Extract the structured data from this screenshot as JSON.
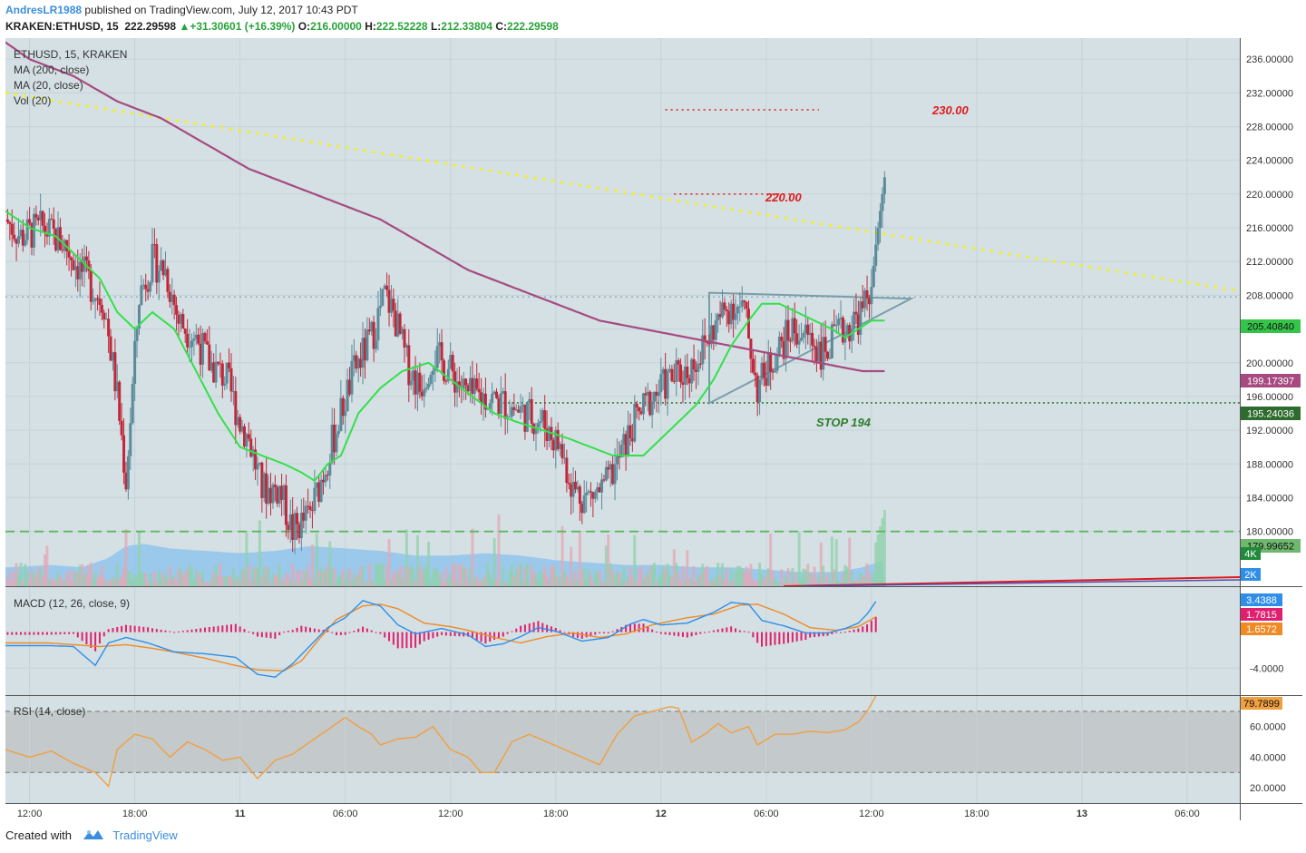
{
  "header": {
    "user": "AndresLR1988",
    "published": "published on TradingView.com, July 12, 2017 10:43 PDT",
    "symbol": "KRAKEN:ETHUSD, 15",
    "last": "222.29598",
    "change_arrow": "▲",
    "change": "+31.30601 (+16.39%)",
    "o_label": "O:",
    "o": "216.00000",
    "h_label": "H:",
    "h": "222.52228",
    "l_label": "L:",
    "l": "212.33804",
    "c_label": "C:",
    "c": "222.29598"
  },
  "legend": {
    "title": "ETHUSD, 15, KRAKEN",
    "ma200": "MA (200, close)",
    "ma20": "MA (20, close)",
    "vol": "Vol (20)",
    "macd": "MACD (12, 26, close, 9)",
    "rsi": "RSI (14, close)"
  },
  "annotations": {
    "target_high": "230.00",
    "target_mid": "220.00",
    "stop": "STOP 194"
  },
  "price_labels": {
    "ma20": "205.40840",
    "ma200": "199.17397",
    "stop": "195.24036",
    "support": "179.99652",
    "vol_4k": "4K",
    "vol_2k": "2K",
    "macd_line": "3.4388",
    "hist": "1.7815",
    "signal": "1.6572",
    "rsi": "79.7899"
  },
  "footer": {
    "created": "Created with",
    "brand": "TradingView"
  },
  "colors": {
    "up": "#5b8a98",
    "down": "#c0283a",
    "ma20": "#34e04a",
    "ma200": "#a64a80",
    "trend": "#f2ef27",
    "red_level": "#e01b1b",
    "stop": "#2e7d2e",
    "support": "#5cb85c",
    "macd": "#2f8fe8",
    "signal": "#f08a24",
    "hist": "#e0206e",
    "rsi": "#f0a040",
    "panel_bg": "#d4e0e4",
    "rsi_band": "#c4c9cb"
  },
  "chart_data": {
    "type": "candlestick",
    "title": "ETHUSD, 15, KRAKEN",
    "price_axis": {
      "ticks": [
        "236.00000",
        "232.00000",
        "228.00000",
        "224.00000",
        "220.00000",
        "216.00000",
        "212.00000",
        "208.00000",
        "204.00000",
        "200.00000",
        "196.00000",
        "192.00000",
        "188.00000",
        "184.00000",
        "180.00000"
      ],
      "range": [
        173.5,
        238.5
      ]
    },
    "macd_axis": {
      "ticks": [
        "-4.0000"
      ],
      "range": [
        -7,
        5
      ]
    },
    "rsi_axis": {
      "ticks": [
        "60.0000",
        "40.0000",
        "20.0000"
      ],
      "range": [
        10,
        80
      ],
      "band": [
        30,
        70
      ]
    },
    "time_axis": {
      "ticks": [
        {
          "label": "12:00",
          "t": 0.0
        },
        {
          "label": "18:00",
          "t": 24.0
        },
        {
          "label": "11",
          "t": 48.0
        },
        {
          "label": "06:00",
          "t": 72.0
        },
        {
          "label": "12:00",
          "t": 96.0
        },
        {
          "label": "18:00",
          "t": 120.0
        },
        {
          "label": "12",
          "t": 144.0
        },
        {
          "label": "06:00",
          "t": 168.0
        },
        {
          "label": "12:00",
          "t": 192.0
        },
        {
          "label": "18:00",
          "t": 216.0
        },
        {
          "label": "13",
          "t": 240.0
        },
        {
          "label": "06:00",
          "t": 264.0
        }
      ],
      "range": [
        -5.5,
        276.0
      ]
    },
    "price_anchors": [
      [
        -5.5,
        217
      ],
      [
        -2,
        215
      ],
      [
        3,
        216
      ],
      [
        8,
        214
      ],
      [
        13,
        210
      ],
      [
        17,
        207
      ],
      [
        20,
        196
      ],
      [
        22,
        186
      ],
      [
        25,
        208
      ],
      [
        28,
        212
      ],
      [
        31,
        211
      ],
      [
        34,
        205
      ],
      [
        38,
        203
      ],
      [
        41,
        200
      ],
      [
        45,
        198
      ],
      [
        48,
        193
      ],
      [
        50,
        191
      ],
      [
        53,
        185
      ],
      [
        57,
        185
      ],
      [
        60,
        180
      ],
      [
        64,
        182
      ],
      [
        67,
        187
      ],
      [
        71,
        194
      ],
      [
        74,
        199
      ],
      [
        78,
        203
      ],
      [
        81,
        208
      ],
      [
        83,
        206
      ],
      [
        86,
        200
      ],
      [
        89,
        197
      ],
      [
        92,
        201
      ],
      [
        96,
        199
      ],
      [
        100,
        196
      ],
      [
        104,
        196
      ],
      [
        109,
        195
      ],
      [
        113,
        194
      ],
      [
        117,
        193
      ],
      [
        121,
        190
      ],
      [
        124,
        185
      ],
      [
        127,
        184
      ],
      [
        131,
        185
      ],
      [
        134,
        188
      ],
      [
        138,
        193
      ],
      [
        142,
        196
      ],
      [
        146,
        198
      ],
      [
        150,
        199
      ],
      [
        154,
        202
      ],
      [
        157,
        205
      ],
      [
        160,
        207
      ],
      [
        163,
        206
      ],
      [
        166,
        197
      ],
      [
        170,
        201
      ],
      [
        174,
        204
      ],
      [
        178,
        203
      ],
      [
        181,
        201
      ],
      [
        184,
        203
      ],
      [
        188,
        205
      ],
      [
        190,
        206
      ],
      [
        192,
        209
      ],
      [
        193,
        214
      ],
      [
        194,
        218
      ],
      [
        195,
        222
      ]
    ],
    "ma20_anchors": [
      [
        -5.5,
        218
      ],
      [
        0,
        216
      ],
      [
        6,
        215
      ],
      [
        12,
        212
      ],
      [
        16,
        210
      ],
      [
        20,
        206
      ],
      [
        24,
        204
      ],
      [
        28,
        206
      ],
      [
        33,
        204
      ],
      [
        38,
        199
      ],
      [
        43,
        194
      ],
      [
        48,
        190
      ],
      [
        53,
        189
      ],
      [
        58,
        188
      ],
      [
        62,
        187
      ],
      [
        65,
        186
      ],
      [
        68,
        188
      ],
      [
        71,
        189
      ],
      [
        75,
        194
      ],
      [
        80,
        197
      ],
      [
        85,
        199
      ],
      [
        91,
        200
      ],
      [
        96,
        198
      ],
      [
        101,
        196
      ],
      [
        106,
        194
      ],
      [
        111,
        193
      ],
      [
        117,
        192
      ],
      [
        123,
        191
      ],
      [
        128,
        190
      ],
      [
        133,
        189
      ],
      [
        137,
        189
      ],
      [
        140,
        189
      ],
      [
        144,
        191
      ],
      [
        148,
        193
      ],
      [
        152,
        195
      ],
      [
        156,
        198
      ],
      [
        160,
        202
      ],
      [
        164,
        205
      ],
      [
        167,
        207
      ],
      [
        171,
        207
      ],
      [
        175,
        206
      ],
      [
        179,
        205
      ],
      [
        183,
        204
      ],
      [
        186,
        203
      ],
      [
        189,
        204
      ],
      [
        192,
        205
      ],
      [
        195,
        205
      ]
    ],
    "ma200_anchors": [
      [
        -5.5,
        238
      ],
      [
        0,
        236
      ],
      [
        10,
        234
      ],
      [
        20,
        231
      ],
      [
        30,
        229
      ],
      [
        40,
        226
      ],
      [
        50,
        223
      ],
      [
        60,
        221
      ],
      [
        70,
        219
      ],
      [
        80,
        217
      ],
      [
        90,
        214
      ],
      [
        100,
        211
      ],
      [
        110,
        209
      ],
      [
        120,
        207
      ],
      [
        130,
        205
      ],
      [
        140,
        204
      ],
      [
        150,
        203
      ],
      [
        160,
        202
      ],
      [
        170,
        201
      ],
      [
        180,
        200
      ],
      [
        190,
        199
      ],
      [
        195,
        199
      ]
    ],
    "volume_anchors": [
      [
        -5.5,
        0.8
      ],
      [
        5,
        0.9
      ],
      [
        12,
        0.8
      ],
      [
        18,
        1.2
      ],
      [
        22,
        1.7
      ],
      [
        26,
        1.8
      ],
      [
        32,
        1.6
      ],
      [
        40,
        1.5
      ],
      [
        48,
        1.4
      ],
      [
        56,
        1.5
      ],
      [
        64,
        1.7
      ],
      [
        72,
        1.6
      ],
      [
        80,
        1.5
      ],
      [
        88,
        1.3
      ],
      [
        96,
        1.3
      ],
      [
        104,
        1.4
      ],
      [
        112,
        1.3
      ],
      [
        120,
        1.1
      ],
      [
        128,
        1.0
      ],
      [
        136,
        0.9
      ],
      [
        144,
        0.9
      ],
      [
        152,
        0.8
      ],
      [
        160,
        0.8
      ],
      [
        168,
        0.7
      ],
      [
        176,
        0.6
      ],
      [
        184,
        0.6
      ],
      [
        190,
        0.8
      ],
      [
        195,
        1.1
      ]
    ],
    "macd_line_anchors": [
      [
        -5.5,
        -1.5
      ],
      [
        4,
        -1.5
      ],
      [
        10,
        -1.6
      ],
      [
        15,
        -3.7
      ],
      [
        18,
        -1.2
      ],
      [
        22,
        -0.6
      ],
      [
        27,
        -1.2
      ],
      [
        33,
        -2.2
      ],
      [
        40,
        -2.4
      ],
      [
        47,
        -2.8
      ],
      [
        52,
        -4.7
      ],
      [
        56,
        -5.0
      ],
      [
        60,
        -3.5
      ],
      [
        64,
        -1.5
      ],
      [
        68,
        0.5
      ],
      [
        72,
        1.6
      ],
      [
        76,
        3.5
      ],
      [
        80,
        2.9
      ],
      [
        84,
        0.8
      ],
      [
        88,
        -0.2
      ],
      [
        94,
        0.4
      ],
      [
        100,
        -0.3
      ],
      [
        104,
        -1.6
      ],
      [
        108,
        -1.3
      ],
      [
        112,
        -0.5
      ],
      [
        116,
        0.5
      ],
      [
        120,
        0.1
      ],
      [
        126,
        -1.0
      ],
      [
        132,
        -0.6
      ],
      [
        137,
        0.9
      ],
      [
        140,
        1.4
      ],
      [
        144,
        0.8
      ],
      [
        150,
        1.0
      ],
      [
        156,
        2.2
      ],
      [
        160,
        3.3
      ],
      [
        164,
        3.1
      ],
      [
        167,
        1.3
      ],
      [
        172,
        0.7
      ],
      [
        177,
        -0.1
      ],
      [
        182,
        -0.1
      ],
      [
        186,
        0.4
      ],
      [
        189,
        1.0
      ],
      [
        191,
        2.0
      ],
      [
        193,
        3.4
      ]
    ],
    "signal_anchors": [
      [
        -5.5,
        -1.2
      ],
      [
        4,
        -1.2
      ],
      [
        10,
        -1.4
      ],
      [
        16,
        -1.6
      ],
      [
        22,
        -1.4
      ],
      [
        28,
        -1.8
      ],
      [
        34,
        -2.3
      ],
      [
        40,
        -2.9
      ],
      [
        46,
        -3.6
      ],
      [
        52,
        -4.2
      ],
      [
        58,
        -4.3
      ],
      [
        62,
        -3.2
      ],
      [
        66,
        -0.8
      ],
      [
        70,
        1.4
      ],
      [
        76,
        2.9
      ],
      [
        80,
        3.1
      ],
      [
        84,
        2.6
      ],
      [
        90,
        1.0
      ],
      [
        96,
        0.6
      ],
      [
        100,
        0.2
      ],
      [
        106,
        -0.6
      ],
      [
        112,
        -1.2
      ],
      [
        118,
        -0.5
      ],
      [
        124,
        -0.1
      ],
      [
        130,
        -0.6
      ],
      [
        136,
        -0.2
      ],
      [
        142,
        0.8
      ],
      [
        150,
        1.6
      ],
      [
        156,
        2.0
      ],
      [
        162,
        3.0
      ],
      [
        166,
        3.1
      ],
      [
        172,
        2.0
      ],
      [
        178,
        0.5
      ],
      [
        184,
        0.2
      ],
      [
        189,
        0.6
      ],
      [
        193,
        1.7
      ]
    ],
    "rsi_anchors": [
      [
        -5.5,
        45
      ],
      [
        0,
        40
      ],
      [
        5,
        44
      ],
      [
        10,
        36
      ],
      [
        15,
        30
      ],
      [
        18,
        21
      ],
      [
        20,
        45
      ],
      [
        24,
        55
      ],
      [
        28,
        52
      ],
      [
        32,
        40
      ],
      [
        36,
        50
      ],
      [
        40,
        45
      ],
      [
        44,
        38
      ],
      [
        48,
        40
      ],
      [
        52,
        26
      ],
      [
        56,
        38
      ],
      [
        60,
        42
      ],
      [
        64,
        50
      ],
      [
        68,
        58
      ],
      [
        72,
        66
      ],
      [
        75,
        60
      ],
      [
        78,
        55
      ],
      [
        80,
        48
      ],
      [
        84,
        52
      ],
      [
        88,
        53
      ],
      [
        92,
        60
      ],
      [
        96,
        45
      ],
      [
        100,
        40
      ],
      [
        103,
        30
      ],
      [
        106,
        30
      ],
      [
        110,
        50
      ],
      [
        114,
        55
      ],
      [
        118,
        50
      ],
      [
        122,
        45
      ],
      [
        126,
        40
      ],
      [
        130,
        35
      ],
      [
        134,
        55
      ],
      [
        138,
        67
      ],
      [
        142,
        70
      ],
      [
        146,
        73
      ],
      [
        148,
        72
      ],
      [
        151,
        50
      ],
      [
        154,
        55
      ],
      [
        157,
        62
      ],
      [
        160,
        56
      ],
      [
        164,
        60
      ],
      [
        166,
        48
      ],
      [
        170,
        55
      ],
      [
        174,
        55
      ],
      [
        178,
        57
      ],
      [
        182,
        56
      ],
      [
        186,
        58
      ],
      [
        189,
        63
      ],
      [
        191,
        70
      ],
      [
        193,
        80
      ]
    ],
    "levels": [
      {
        "price": 230.0,
        "name": "target 230",
        "style": "dotted",
        "t": [
          145,
          180
        ]
      },
      {
        "price": 220.0,
        "name": "target 220",
        "style": "dotted",
        "t": [
          147,
          174
        ]
      },
      {
        "price": 195.24,
        "name": "stop 194",
        "style": "dotted",
        "t": [
          107,
          276
        ]
      },
      {
        "price": 179.99,
        "name": "support",
        "style": "dashed",
        "t": [
          -5.5,
          276
        ]
      },
      {
        "price": 207.8,
        "name": "horizontal reference",
        "style": "dotted-blue",
        "t": [
          -5.5,
          276
        ]
      }
    ],
    "trendline": [
      [
        -5.5,
        232
      ],
      [
        276,
        208.5
      ]
    ],
    "triangle": [
      [
        155,
        208.3
      ],
      [
        201,
        207.6
      ],
      [
        155,
        195.2
      ]
    ]
  }
}
